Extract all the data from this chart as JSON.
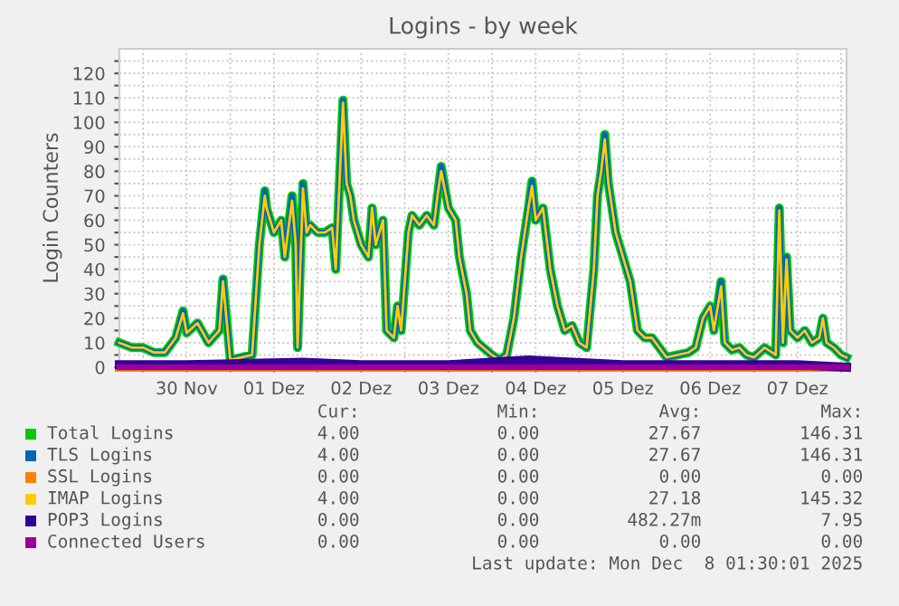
{
  "chart_data": {
    "type": "line",
    "title": "Logins - by week",
    "ylabel": "Login Counters",
    "x": [
      "2025-11-29T17:30",
      "2025-11-29T21:00",
      "2025-11-30T00:00",
      "2025-11-30T03:00",
      "2025-11-30T06:00",
      "2025-11-30T09:00",
      "2025-11-30T11:00",
      "2025-11-30T12:00",
      "2025-11-30T15:00",
      "2025-11-30T18:00",
      "2025-11-30T21:00",
      "2025-11-30T22:00",
      "2025-12-01T00:00",
      "2025-12-01T06:00",
      "2025-12-01T08:00",
      "2025-12-01T09:30",
      "2025-12-01T10:00",
      "2025-12-01T12:00",
      "2025-12-01T14:00",
      "2025-12-01T15:00",
      "2025-12-01T17:00",
      "2025-12-01T18:00",
      "2025-12-01T18:30",
      "2025-12-01T20:00",
      "2025-12-01T21:00",
      "2025-12-01T22:00",
      "2025-12-02T00:00",
      "2025-12-02T02:00",
      "2025-12-02T04:00",
      "2025-12-02T05:00",
      "2025-12-02T07:00",
      "2025-12-02T08:00",
      "2025-12-02T09:00",
      "2025-12-02T10:00",
      "2025-12-02T12:00",
      "2025-12-02T14:00",
      "2025-12-02T15:00",
      "2025-12-02T16:00",
      "2025-12-02T18:00",
      "2025-12-02T19:00",
      "2025-12-02T21:00",
      "2025-12-02T22:00",
      "2025-12-02T23:00",
      "2025-12-03T01:00",
      "2025-12-03T02:00",
      "2025-12-03T04:00",
      "2025-12-03T06:00",
      "2025-12-03T08:00",
      "2025-12-03T09:00",
      "2025-12-03T10:00",
      "2025-12-03T12:00",
      "2025-12-03T14:00",
      "2025-12-03T15:00",
      "2025-12-03T17:00",
      "2025-12-03T18:00",
      "2025-12-03T20:00",
      "2025-12-04T00:00",
      "2025-12-04T02:00",
      "2025-12-04T04:00",
      "2025-12-04T06:00",
      "2025-12-04T08:00",
      "2025-12-04T10:00",
      "2025-12-04T11:00",
      "2025-12-04T12:00",
      "2025-12-04T14:00",
      "2025-12-04T16:00",
      "2025-12-04T18:00",
      "2025-12-04T20:00",
      "2025-12-04T22:00",
      "2025-12-05T00:00",
      "2025-12-05T02:00",
      "2025-12-05T04:00",
      "2025-12-05T05:00",
      "2025-12-05T06:00",
      "2025-12-05T07:00",
      "2025-12-05T08:00",
      "2025-12-05T10:00",
      "2025-12-05T12:00",
      "2025-12-05T14:00",
      "2025-12-05T16:00",
      "2025-12-05T18:00",
      "2025-12-05T20:00",
      "2025-12-05T22:00",
      "2025-12-06T00:00",
      "2025-12-06T03:00",
      "2025-12-06T06:00",
      "2025-12-06T08:00",
      "2025-12-06T10:00",
      "2025-12-06T12:00",
      "2025-12-06T13:00",
      "2025-12-06T15:00",
      "2025-12-06T16:00",
      "2025-12-06T18:00",
      "2025-12-06T20:00",
      "2025-12-06T22:00",
      "2025-12-07T00:00",
      "2025-12-07T03:00",
      "2025-12-07T06:00",
      "2025-12-07T07:00",
      "2025-12-07T08:00",
      "2025-12-07T09:00",
      "2025-12-07T10:00",
      "2025-12-07T12:00",
      "2025-12-07T14:00",
      "2025-12-07T16:00",
      "2025-12-07T18:00",
      "2025-12-07T19:00",
      "2025-12-07T20:00",
      "2025-12-07T22:00",
      "2025-12-08T00:00",
      "2025-12-08T01:30"
    ],
    "series": [
      {
        "name": "Total Logins",
        "color": "#00cc00",
        "values": [
          10,
          8,
          8,
          6,
          6,
          12,
          23,
          14,
          18,
          10,
          15,
          36,
          3,
          5,
          50,
          72,
          65,
          55,
          60,
          45,
          70,
          50,
          8,
          75,
          55,
          58,
          55,
          55,
          57,
          40,
          109,
          75,
          70,
          60,
          50,
          45,
          65,
          50,
          60,
          15,
          12,
          25,
          15,
          55,
          62,
          58,
          62,
          58,
          70,
          82,
          65,
          60,
          45,
          30,
          15,
          10,
          5,
          3,
          5,
          20,
          45,
          65,
          76,
          60,
          65,
          40,
          25,
          15,
          17,
          10,
          8,
          40,
          70,
          80,
          95,
          75,
          55,
          45,
          35,
          15,
          12,
          12,
          8,
          4,
          5,
          6,
          8,
          20,
          25,
          15,
          35,
          10,
          7,
          8,
          5,
          4,
          8,
          5,
          65,
          10,
          45,
          15,
          12,
          15,
          10,
          12,
          20,
          10,
          8,
          5,
          4
        ]
      },
      {
        "name": "TLS Logins",
        "color": "#0066b3",
        "values": [
          10,
          8,
          8,
          6,
          6,
          12,
          23,
          14,
          18,
          10,
          15,
          36,
          3,
          5,
          50,
          72,
          65,
          55,
          60,
          45,
          70,
          50,
          8,
          75,
          55,
          58,
          55,
          55,
          57,
          40,
          109,
          75,
          70,
          60,
          50,
          45,
          65,
          50,
          60,
          15,
          12,
          25,
          15,
          55,
          62,
          58,
          62,
          58,
          70,
          82,
          65,
          60,
          45,
          30,
          15,
          10,
          5,
          3,
          5,
          20,
          45,
          65,
          76,
          60,
          65,
          40,
          25,
          15,
          17,
          10,
          8,
          40,
          70,
          80,
          95,
          75,
          55,
          45,
          35,
          15,
          12,
          12,
          8,
          4,
          5,
          6,
          8,
          20,
          25,
          15,
          35,
          10,
          7,
          8,
          5,
          4,
          8,
          5,
          65,
          10,
          45,
          15,
          12,
          15,
          10,
          12,
          20,
          10,
          8,
          5,
          4
        ]
      },
      {
        "name": "SSL Logins",
        "color": "#ff8000",
        "x": [
          "2025-11-29T17:30",
          "2025-12-08T01:30"
        ],
        "values": [
          0,
          0
        ]
      },
      {
        "name": "IMAP Logins",
        "color": "#ffcc00",
        "values": [
          10,
          8,
          8,
          6,
          6,
          12,
          22,
          14,
          18,
          10,
          15,
          35,
          3,
          5,
          50,
          70,
          65,
          55,
          60,
          45,
          68,
          50,
          8,
          73,
          55,
          58,
          55,
          55,
          57,
          40,
          108,
          75,
          70,
          60,
          50,
          45,
          65,
          50,
          60,
          15,
          12,
          25,
          15,
          55,
          62,
          58,
          62,
          58,
          70,
          80,
          65,
          60,
          45,
          30,
          15,
          10,
          5,
          3,
          5,
          20,
          45,
          65,
          74,
          60,
          65,
          40,
          25,
          15,
          17,
          10,
          8,
          40,
          70,
          80,
          93,
          75,
          55,
          45,
          35,
          15,
          12,
          12,
          8,
          4,
          5,
          6,
          8,
          20,
          25,
          15,
          33,
          10,
          7,
          8,
          5,
          4,
          8,
          5,
          64,
          10,
          44,
          15,
          12,
          15,
          10,
          12,
          20,
          10,
          8,
          5,
          4
        ]
      },
      {
        "name": "POP3 Logins",
        "color": "#330099",
        "x": [
          "2025-11-29T17:30",
          "2025-11-30T12:00",
          "2025-12-01T20:00",
          "2025-12-02T12:00",
          "2025-12-03T12:00",
          "2025-12-04T10:00",
          "2025-12-05T12:00",
          "2025-12-06T12:00",
          "2025-12-07T12:00",
          "2025-12-08T01:30"
        ],
        "values": [
          1,
          1,
          2,
          1,
          1,
          3,
          1,
          1,
          1,
          0
        ]
      },
      {
        "name": "Connected Users",
        "color": "#990099",
        "x": [
          "2025-11-29T17:30",
          "2025-12-08T01:30"
        ],
        "values": [
          0,
          0
        ]
      }
    ],
    "xlim": [
      "2025-11-29T17:30",
      "2025-12-08T01:30"
    ],
    "xticks": [
      {
        "value": "2025-11-30T00:00",
        "label": null
      },
      {
        "value": "2025-11-30T12:00",
        "label": "30 Nov"
      },
      {
        "value": "2025-12-01T00:00",
        "label": null
      },
      {
        "value": "2025-12-01T12:00",
        "label": "01 Dez"
      },
      {
        "value": "2025-12-02T00:00",
        "label": null
      },
      {
        "value": "2025-12-02T12:00",
        "label": "02 Dez"
      },
      {
        "value": "2025-12-03T00:00",
        "label": null
      },
      {
        "value": "2025-12-03T12:00",
        "label": "03 Dez"
      },
      {
        "value": "2025-12-04T00:00",
        "label": null
      },
      {
        "value": "2025-12-04T12:00",
        "label": "04 Dez"
      },
      {
        "value": "2025-12-05T00:00",
        "label": null
      },
      {
        "value": "2025-12-05T12:00",
        "label": "05 Dez"
      },
      {
        "value": "2025-12-06T00:00",
        "label": null
      },
      {
        "value": "2025-12-06T12:00",
        "label": "06 Dez"
      },
      {
        "value": "2025-12-07T00:00",
        "label": null
      },
      {
        "value": "2025-12-07T12:00",
        "label": "07 Dez"
      },
      {
        "value": "2025-12-08T00:00",
        "label": null
      }
    ],
    "ylim": [
      0,
      130
    ],
    "yticks": [
      0,
      {
        "value": 5,
        "label": null
      },
      10,
      {
        "value": 15,
        "label": null
      },
      20,
      {
        "value": 25,
        "label": null
      },
      30,
      {
        "value": 35,
        "label": null
      },
      40,
      {
        "value": 45,
        "label": null
      },
      50,
      {
        "value": 55,
        "label": null
      },
      60,
      {
        "value": 65,
        "label": null
      },
      70,
      {
        "value": 75,
        "label": null
      },
      80,
      {
        "value": 85,
        "label": null
      },
      90,
      {
        "value": 95,
        "label": null
      },
      100,
      {
        "value": 105,
        "label": null
      },
      110,
      {
        "value": 115,
        "label": null
      },
      120,
      {
        "value": 125,
        "label": null
      }
    ],
    "grid": true,
    "legend": "bottom",
    "marker": "none",
    "line_style": "solid",
    "annotations": [
      "Cur:",
      "Min:",
      "Avg:",
      "Max:",
      "4.00",
      "0.00",
      "27.67",
      "146.31",
      "4.00",
      "0.00",
      "27.67",
      "146.31",
      "0.00",
      "0.00",
      "0.00",
      "0.00",
      "4.00",
      "0.00",
      "27.18",
      "145.32",
      "0.00",
      "0.00",
      "482.27m",
      "7.95",
      "0.00",
      "0.00",
      "0.00",
      "0.00",
      "Last update: Mon Dec  8 01:30:01 2025"
    ]
  }
}
